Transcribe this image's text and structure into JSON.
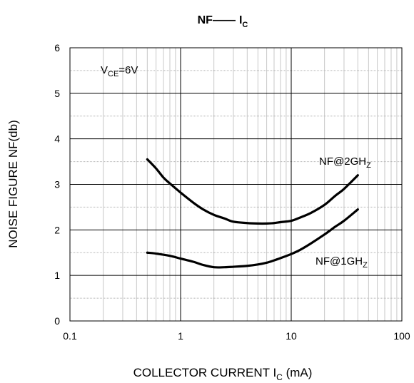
{
  "chart_data": {
    "type": "line",
    "title": {
      "left": "NF",
      "dash": "——",
      "main": "I",
      "sub": "C"
    },
    "xlabel": {
      "main": "COLLECTOR CURRENT I",
      "sub": "C",
      "tail": " (mA)"
    },
    "ylabel": "NOISE FIGURE NF(db)",
    "xscale": "log",
    "xlim": [
      0.1,
      100
    ],
    "ylim": [
      0,
      6
    ],
    "x_ticks": [
      0.1,
      1,
      10,
      100
    ],
    "x_tick_labels": [
      "0.1",
      "1",
      "10",
      "100"
    ],
    "y_ticks": [
      0,
      1,
      2,
      3,
      4,
      5,
      6
    ],
    "y_tick_labels": [
      "0",
      "1",
      "2",
      "3",
      "4",
      "5",
      "6"
    ],
    "grid": true,
    "line_color": "#000000",
    "condition": {
      "main": "V",
      "sub": "CE",
      "tail": "=6V"
    },
    "series": [
      {
        "label": {
          "main": "NF@2GH",
          "sub": "Z"
        },
        "x": [
          0.5,
          0.6,
          0.7,
          0.8,
          1.0,
          1.3,
          1.6,
          2.0,
          2.5,
          3.0,
          4.0,
          5.0,
          6.0,
          7.0,
          8.0,
          10,
          12,
          15,
          20,
          25,
          30,
          40
        ],
        "y": [
          3.55,
          3.35,
          3.15,
          3.02,
          2.82,
          2.6,
          2.45,
          2.33,
          2.25,
          2.18,
          2.15,
          2.14,
          2.14,
          2.15,
          2.17,
          2.2,
          2.27,
          2.37,
          2.55,
          2.75,
          2.9,
          3.2
        ]
      },
      {
        "label": {
          "main": "NF@1GH",
          "sub": "Z"
        },
        "x": [
          0.5,
          0.6,
          0.8,
          1.0,
          1.3,
          1.6,
          2.0,
          2.5,
          3.0,
          4.0,
          5.0,
          6.0,
          7.0,
          8.0,
          10,
          12,
          15,
          20,
          25,
          30,
          40
        ],
        "y": [
          1.5,
          1.48,
          1.43,
          1.37,
          1.3,
          1.23,
          1.18,
          1.18,
          1.19,
          1.21,
          1.24,
          1.28,
          1.33,
          1.38,
          1.47,
          1.56,
          1.7,
          1.9,
          2.07,
          2.2,
          2.45
        ]
      }
    ]
  }
}
